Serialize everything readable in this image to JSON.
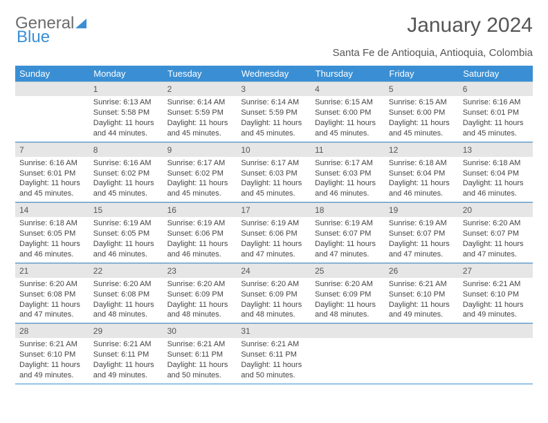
{
  "logo": {
    "text1": "General",
    "text2": "Blue"
  },
  "header": {
    "title": "January 2024",
    "location": "Santa Fe de Antioquia, Antioquia, Colombia"
  },
  "colors": {
    "accent": "#3a8fd4",
    "header_gray": "#e6e6e6",
    "text": "#444",
    "background": "#ffffff"
  },
  "weekdays": [
    "Sunday",
    "Monday",
    "Tuesday",
    "Wednesday",
    "Thursday",
    "Friday",
    "Saturday"
  ],
  "weeks": [
    [
      {
        "day": "",
        "sunrise": "",
        "sunset": "",
        "daylight1": "",
        "daylight2": ""
      },
      {
        "day": "1",
        "sunrise": "Sunrise: 6:13 AM",
        "sunset": "Sunset: 5:58 PM",
        "daylight1": "Daylight: 11 hours",
        "daylight2": "and 44 minutes."
      },
      {
        "day": "2",
        "sunrise": "Sunrise: 6:14 AM",
        "sunset": "Sunset: 5:59 PM",
        "daylight1": "Daylight: 11 hours",
        "daylight2": "and 45 minutes."
      },
      {
        "day": "3",
        "sunrise": "Sunrise: 6:14 AM",
        "sunset": "Sunset: 5:59 PM",
        "daylight1": "Daylight: 11 hours",
        "daylight2": "and 45 minutes."
      },
      {
        "day": "4",
        "sunrise": "Sunrise: 6:15 AM",
        "sunset": "Sunset: 6:00 PM",
        "daylight1": "Daylight: 11 hours",
        "daylight2": "and 45 minutes."
      },
      {
        "day": "5",
        "sunrise": "Sunrise: 6:15 AM",
        "sunset": "Sunset: 6:00 PM",
        "daylight1": "Daylight: 11 hours",
        "daylight2": "and 45 minutes."
      },
      {
        "day": "6",
        "sunrise": "Sunrise: 6:16 AM",
        "sunset": "Sunset: 6:01 PM",
        "daylight1": "Daylight: 11 hours",
        "daylight2": "and 45 minutes."
      }
    ],
    [
      {
        "day": "7",
        "sunrise": "Sunrise: 6:16 AM",
        "sunset": "Sunset: 6:01 PM",
        "daylight1": "Daylight: 11 hours",
        "daylight2": "and 45 minutes."
      },
      {
        "day": "8",
        "sunrise": "Sunrise: 6:16 AM",
        "sunset": "Sunset: 6:02 PM",
        "daylight1": "Daylight: 11 hours",
        "daylight2": "and 45 minutes."
      },
      {
        "day": "9",
        "sunrise": "Sunrise: 6:17 AM",
        "sunset": "Sunset: 6:02 PM",
        "daylight1": "Daylight: 11 hours",
        "daylight2": "and 45 minutes."
      },
      {
        "day": "10",
        "sunrise": "Sunrise: 6:17 AM",
        "sunset": "Sunset: 6:03 PM",
        "daylight1": "Daylight: 11 hours",
        "daylight2": "and 45 minutes."
      },
      {
        "day": "11",
        "sunrise": "Sunrise: 6:17 AM",
        "sunset": "Sunset: 6:03 PM",
        "daylight1": "Daylight: 11 hours",
        "daylight2": "and 46 minutes."
      },
      {
        "day": "12",
        "sunrise": "Sunrise: 6:18 AM",
        "sunset": "Sunset: 6:04 PM",
        "daylight1": "Daylight: 11 hours",
        "daylight2": "and 46 minutes."
      },
      {
        "day": "13",
        "sunrise": "Sunrise: 6:18 AM",
        "sunset": "Sunset: 6:04 PM",
        "daylight1": "Daylight: 11 hours",
        "daylight2": "and 46 minutes."
      }
    ],
    [
      {
        "day": "14",
        "sunrise": "Sunrise: 6:18 AM",
        "sunset": "Sunset: 6:05 PM",
        "daylight1": "Daylight: 11 hours",
        "daylight2": "and 46 minutes."
      },
      {
        "day": "15",
        "sunrise": "Sunrise: 6:19 AM",
        "sunset": "Sunset: 6:05 PM",
        "daylight1": "Daylight: 11 hours",
        "daylight2": "and 46 minutes."
      },
      {
        "day": "16",
        "sunrise": "Sunrise: 6:19 AM",
        "sunset": "Sunset: 6:06 PM",
        "daylight1": "Daylight: 11 hours",
        "daylight2": "and 46 minutes."
      },
      {
        "day": "17",
        "sunrise": "Sunrise: 6:19 AM",
        "sunset": "Sunset: 6:06 PM",
        "daylight1": "Daylight: 11 hours",
        "daylight2": "and 47 minutes."
      },
      {
        "day": "18",
        "sunrise": "Sunrise: 6:19 AM",
        "sunset": "Sunset: 6:07 PM",
        "daylight1": "Daylight: 11 hours",
        "daylight2": "and 47 minutes."
      },
      {
        "day": "19",
        "sunrise": "Sunrise: 6:19 AM",
        "sunset": "Sunset: 6:07 PM",
        "daylight1": "Daylight: 11 hours",
        "daylight2": "and 47 minutes."
      },
      {
        "day": "20",
        "sunrise": "Sunrise: 6:20 AM",
        "sunset": "Sunset: 6:07 PM",
        "daylight1": "Daylight: 11 hours",
        "daylight2": "and 47 minutes."
      }
    ],
    [
      {
        "day": "21",
        "sunrise": "Sunrise: 6:20 AM",
        "sunset": "Sunset: 6:08 PM",
        "daylight1": "Daylight: 11 hours",
        "daylight2": "and 47 minutes."
      },
      {
        "day": "22",
        "sunrise": "Sunrise: 6:20 AM",
        "sunset": "Sunset: 6:08 PM",
        "daylight1": "Daylight: 11 hours",
        "daylight2": "and 48 minutes."
      },
      {
        "day": "23",
        "sunrise": "Sunrise: 6:20 AM",
        "sunset": "Sunset: 6:09 PM",
        "daylight1": "Daylight: 11 hours",
        "daylight2": "and 48 minutes."
      },
      {
        "day": "24",
        "sunrise": "Sunrise: 6:20 AM",
        "sunset": "Sunset: 6:09 PM",
        "daylight1": "Daylight: 11 hours",
        "daylight2": "and 48 minutes."
      },
      {
        "day": "25",
        "sunrise": "Sunrise: 6:20 AM",
        "sunset": "Sunset: 6:09 PM",
        "daylight1": "Daylight: 11 hours",
        "daylight2": "and 48 minutes."
      },
      {
        "day": "26",
        "sunrise": "Sunrise: 6:21 AM",
        "sunset": "Sunset: 6:10 PM",
        "daylight1": "Daylight: 11 hours",
        "daylight2": "and 49 minutes."
      },
      {
        "day": "27",
        "sunrise": "Sunrise: 6:21 AM",
        "sunset": "Sunset: 6:10 PM",
        "daylight1": "Daylight: 11 hours",
        "daylight2": "and 49 minutes."
      }
    ],
    [
      {
        "day": "28",
        "sunrise": "Sunrise: 6:21 AM",
        "sunset": "Sunset: 6:10 PM",
        "daylight1": "Daylight: 11 hours",
        "daylight2": "and 49 minutes."
      },
      {
        "day": "29",
        "sunrise": "Sunrise: 6:21 AM",
        "sunset": "Sunset: 6:11 PM",
        "daylight1": "Daylight: 11 hours",
        "daylight2": "and 49 minutes."
      },
      {
        "day": "30",
        "sunrise": "Sunrise: 6:21 AM",
        "sunset": "Sunset: 6:11 PM",
        "daylight1": "Daylight: 11 hours",
        "daylight2": "and 50 minutes."
      },
      {
        "day": "31",
        "sunrise": "Sunrise: 6:21 AM",
        "sunset": "Sunset: 6:11 PM",
        "daylight1": "Daylight: 11 hours",
        "daylight2": "and 50 minutes."
      },
      {
        "day": "",
        "sunrise": "",
        "sunset": "",
        "daylight1": "",
        "daylight2": ""
      },
      {
        "day": "",
        "sunrise": "",
        "sunset": "",
        "daylight1": "",
        "daylight2": ""
      },
      {
        "day": "",
        "sunrise": "",
        "sunset": "",
        "daylight1": "",
        "daylight2": ""
      }
    ]
  ]
}
